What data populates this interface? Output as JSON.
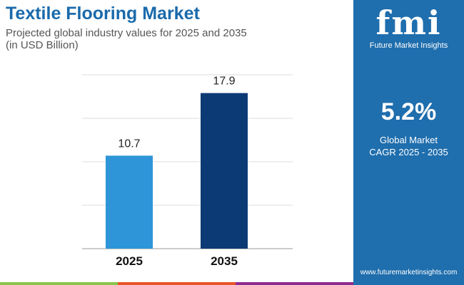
{
  "header": {
    "title": "Textile Flooring Market",
    "subtitle_line1": "Projected global industry values for 2025 and 2035",
    "subtitle_line2": "(in USD Billion)"
  },
  "panel": {
    "logo_text": "fmi",
    "logo_name": "Future Market Insights",
    "cagr_value": "5.2%",
    "cagr_label_line1": "Global Market",
    "cagr_label_line2": "CAGR 2025 - 2035",
    "url": "www.futuremarketinsights.com",
    "background": "#1f6ead"
  },
  "stripes": [
    "#8bc34a",
    "#e8572a",
    "#8e2c8f"
  ],
  "chart_data": {
    "type": "bar",
    "categories": [
      "2025",
      "2035"
    ],
    "values": [
      10.7,
      17.9
    ],
    "data_labels": [
      "10.7",
      "17.9"
    ],
    "colors": [
      "#2e95d8",
      "#0b3a75"
    ],
    "ylim": [
      0,
      20
    ],
    "grid": true,
    "gridlines": [
      5,
      10,
      15,
      20
    ]
  }
}
